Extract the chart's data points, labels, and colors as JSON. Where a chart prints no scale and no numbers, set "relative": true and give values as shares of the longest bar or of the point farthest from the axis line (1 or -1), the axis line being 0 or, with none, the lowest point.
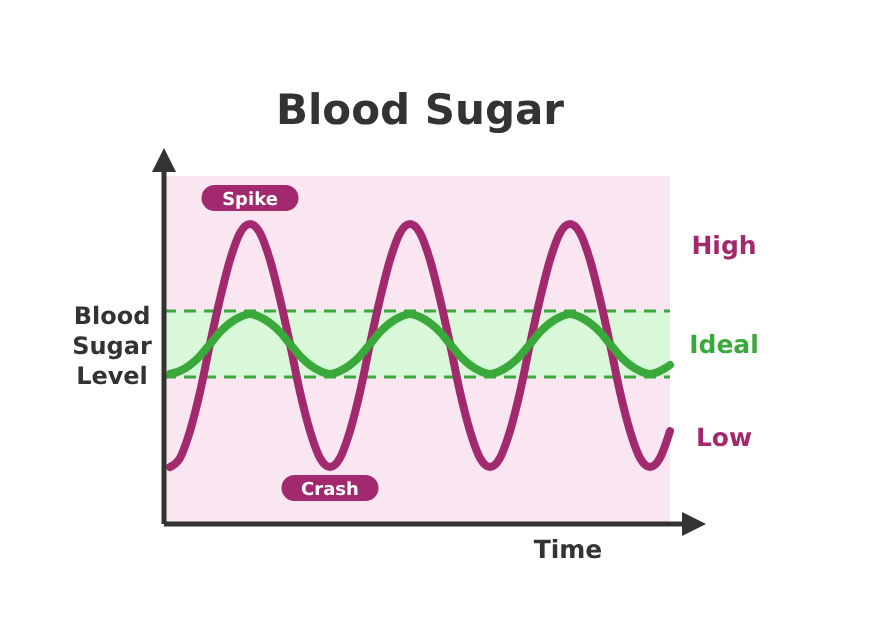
{
  "chart_data": {
    "type": "line",
    "title": "Blood Sugar",
    "xlabel": "Time",
    "ylabel": "Blood Sugar Level",
    "relative": true,
    "categories": [
      null,
      null,
      null,
      null,
      null,
      null,
      null,
      null,
      null,
      null,
      null,
      null,
      null,
      null,
      null,
      null,
      null,
      null,
      null,
      null,
      null,
      null,
      null,
      null,
      null,
      null,
      null,
      null,
      null,
      null,
      null,
      null,
      null,
      null,
      null,
      null,
      null,
      null,
      null,
      null,
      null,
      null,
      null,
      null,
      null,
      null,
      null,
      null,
      null,
      null,
      null
    ],
    "series": [
      {
        "color": "#a3296f",
        "values": [
          0.19,
          0.22,
          0.31,
          0.44,
          0.6,
          0.75,
          0.88,
          0.97,
          1,
          0.97,
          0.88,
          0.75,
          0.6,
          0.44,
          0.31,
          0.22,
          0.19,
          0.22,
          0.31,
          0.44,
          0.6,
          0.75,
          0.88,
          0.97,
          1,
          0.97,
          0.88,
          0.75,
          0.6,
          0.44,
          0.31,
          0.22,
          0.19,
          0.22,
          0.31,
          0.44,
          0.6,
          0.75,
          0.88,
          0.97,
          1,
          0.97,
          0.88,
          0.75,
          0.6,
          0.44,
          0.31,
          0.22,
          0.19,
          0.22,
          0.31
        ]
      },
      {
        "color": "#3aa83a",
        "values": [
          0.5,
          0.51,
          0.53,
          0.56,
          0.6,
          0.64,
          0.67,
          0.69,
          0.7,
          0.69,
          0.67,
          0.64,
          0.6,
          0.56,
          0.53,
          0.51,
          0.5,
          0.51,
          0.53,
          0.56,
          0.6,
          0.64,
          0.67,
          0.69,
          0.7,
          0.69,
          0.67,
          0.64,
          0.6,
          0.56,
          0.53,
          0.51,
          0.5,
          0.51,
          0.53,
          0.56,
          0.6,
          0.64,
          0.67,
          0.69,
          0.7,
          0.69,
          0.67,
          0.64,
          0.6,
          0.56,
          0.53,
          0.51,
          0.5,
          0.51,
          0.53
        ]
      }
    ],
    "bands": [
      {
        "axis": "y",
        "from": 0.49,
        "to": 0.71,
        "label": "Ideal",
        "color": "#d9f7d9"
      }
    ],
    "ref_lines": [
      {
        "axis": "y",
        "value": 0.71,
        "color": "#3aa83a",
        "line_style": "dashed"
      },
      {
        "axis": "y",
        "value": 0.49,
        "color": "#3aa83a",
        "line_style": "dashed"
      }
    ],
    "annotations": [
      "Spike",
      "Crash",
      "High",
      "Low"
    ],
    "legend": false,
    "grid": false,
    "marker": "none",
    "line_style": "solid"
  }
}
